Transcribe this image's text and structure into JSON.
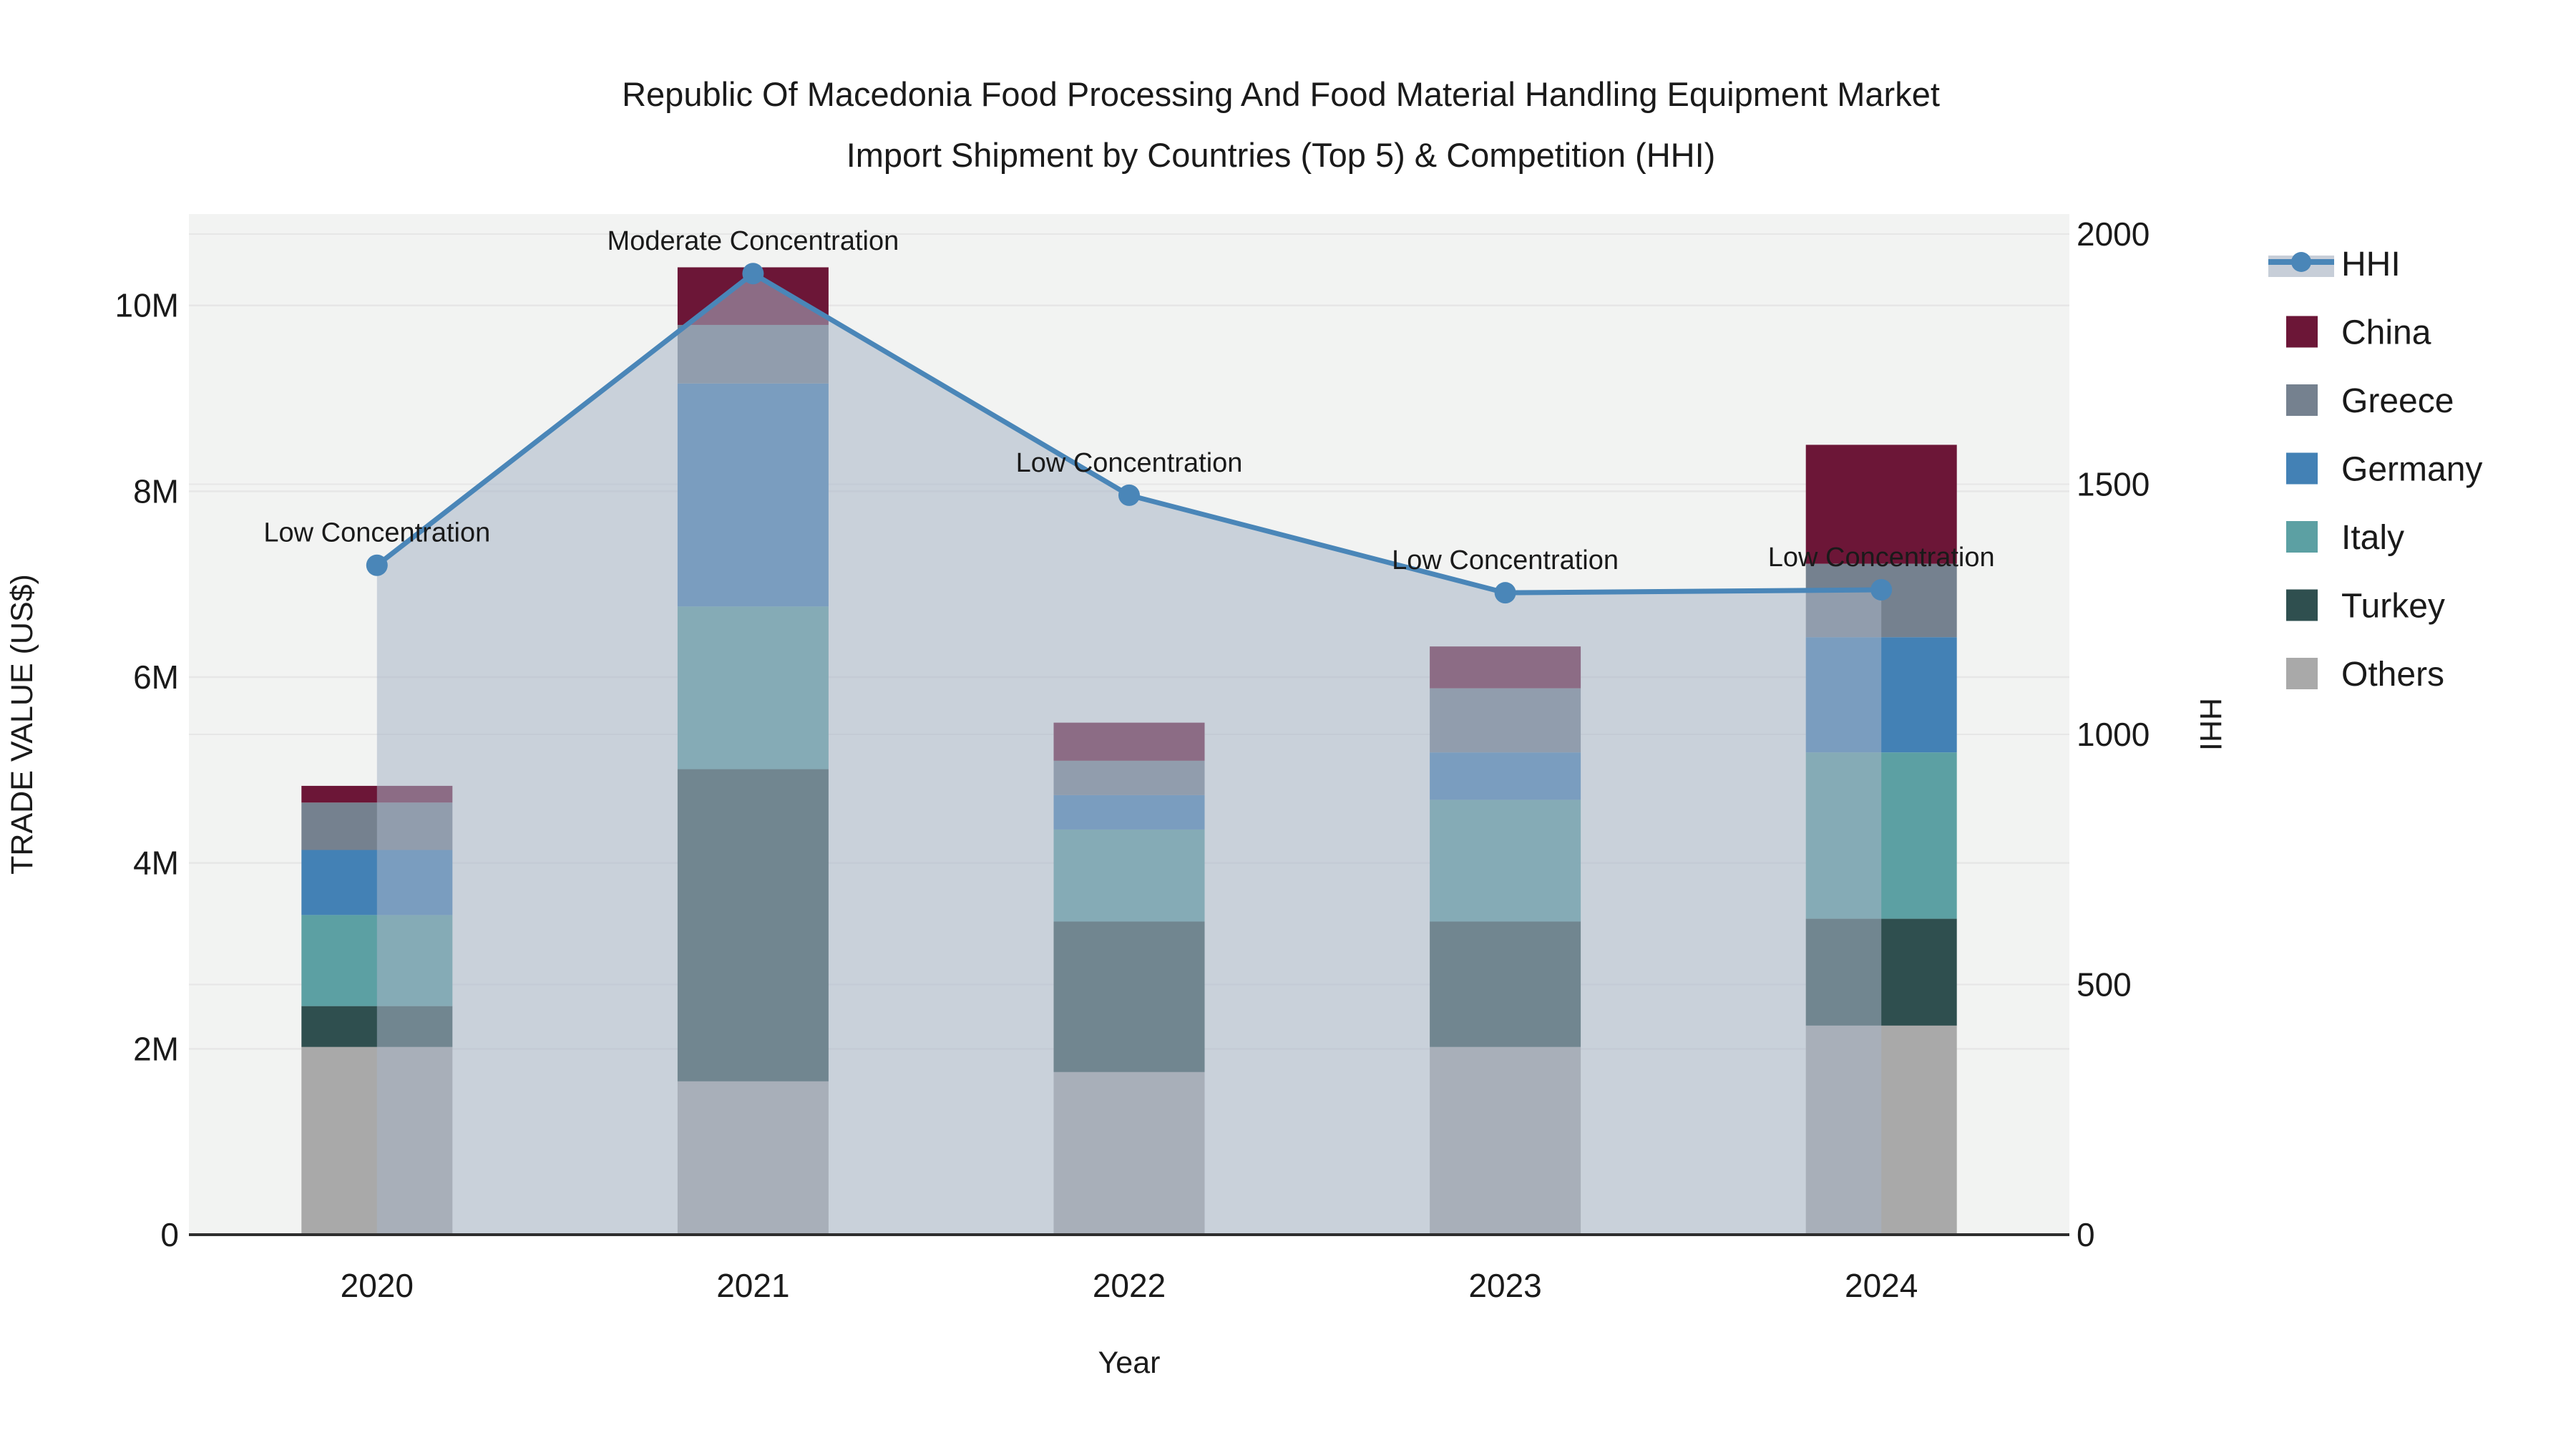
{
  "title": {
    "line1": "Republic Of Macedonia Food Processing And Food Material Handling Equipment Market",
    "line2": "Import Shipment by Countries (Top 5) & Competition (HHI)"
  },
  "axes": {
    "left": {
      "label": "TRADE VALUE (US$)",
      "tick_labels": [
        "0",
        "2M",
        "4M",
        "6M",
        "8M",
        "10M"
      ],
      "tick_values": [
        0,
        2,
        4,
        6,
        8,
        10
      ]
    },
    "right": {
      "label": "HHI",
      "tick_labels": [
        "0",
        "500",
        "1000",
        "1500",
        "2000"
      ],
      "tick_values": [
        0,
        500,
        1000,
        1500,
        2000
      ]
    },
    "x": {
      "label": "Year"
    }
  },
  "legend": {
    "items": [
      {
        "label": "HHI",
        "type": "line",
        "color": "#4a86b8"
      },
      {
        "label": "China",
        "type": "swatch",
        "color": "#6c1637"
      },
      {
        "label": "Greece",
        "type": "swatch",
        "color": "#75818f"
      },
      {
        "label": "Germany",
        "type": "swatch",
        "color": "#4381b5"
      },
      {
        "label": "Italy",
        "type": "swatch",
        "color": "#5ca0a3"
      },
      {
        "label": "Turkey",
        "type": "swatch",
        "color": "#2f4f4f"
      },
      {
        "label": "Others",
        "type": "swatch",
        "color": "#a9a9a9"
      }
    ]
  },
  "colors": {
    "plot_bg": "#f2f3f2",
    "gridline": "#e6e6e6",
    "baseline": "#2e2e2e",
    "hhi_line": "#4a86b8",
    "hhi_area": "rgba(168,180,198,0.55)",
    "hhi_legend_band": "#c7ced8"
  },
  "chart_data": {
    "type": "bar+line",
    "title": "Republic Of Macedonia Food Processing And Food Material Handling Equipment Market Import Shipment by Countries (Top 5) & Competition (HHI)",
    "categories": [
      "2020",
      "2021",
      "2022",
      "2023",
      "2024"
    ],
    "bar_unit": "trade value, millions US$",
    "stack_note": "series listed bottom-to-top of the stacked bars",
    "series": [
      {
        "name": "Others",
        "color": "#a9a9a9",
        "values": [
          2.02,
          1.65,
          1.75,
          2.02,
          2.25
        ]
      },
      {
        "name": "Turkey",
        "color": "#2f4f4f",
        "values": [
          0.44,
          3.36,
          1.62,
          1.35,
          1.15
        ]
      },
      {
        "name": "Italy",
        "color": "#5ca0a3",
        "values": [
          0.98,
          1.75,
          0.99,
          1.31,
          1.79
        ]
      },
      {
        "name": "Germany",
        "color": "#4381b5",
        "values": [
          0.7,
          2.4,
          0.37,
          0.51,
          1.24
        ]
      },
      {
        "name": "Greece",
        "color": "#75818f",
        "values": [
          0.51,
          0.63,
          0.37,
          0.69,
          0.79
        ]
      },
      {
        "name": "China",
        "color": "#6c1637",
        "values": [
          0.18,
          0.62,
          0.41,
          0.45,
          1.28
        ]
      }
    ],
    "bar_totals": [
      4.83,
      10.41,
      5.51,
      6.33,
      8.5
    ],
    "line_series": {
      "name": "HHI",
      "color": "#4a86b8",
      "values": [
        1338,
        1921,
        1478,
        1283,
        1289
      ]
    },
    "annotations": [
      "Low Concentration",
      "Moderate Concentration",
      "Low Concentration",
      "Low Concentration",
      "Low Concentration"
    ],
    "xlabel": "Year",
    "ylabel_left": "TRADE VALUE (US$)",
    "ylabel_right": "HHI",
    "ylim_left_millions": [
      0,
      11.08
    ],
    "ylim_right": [
      0,
      2057
    ],
    "grid": true,
    "legend_position": "right"
  }
}
